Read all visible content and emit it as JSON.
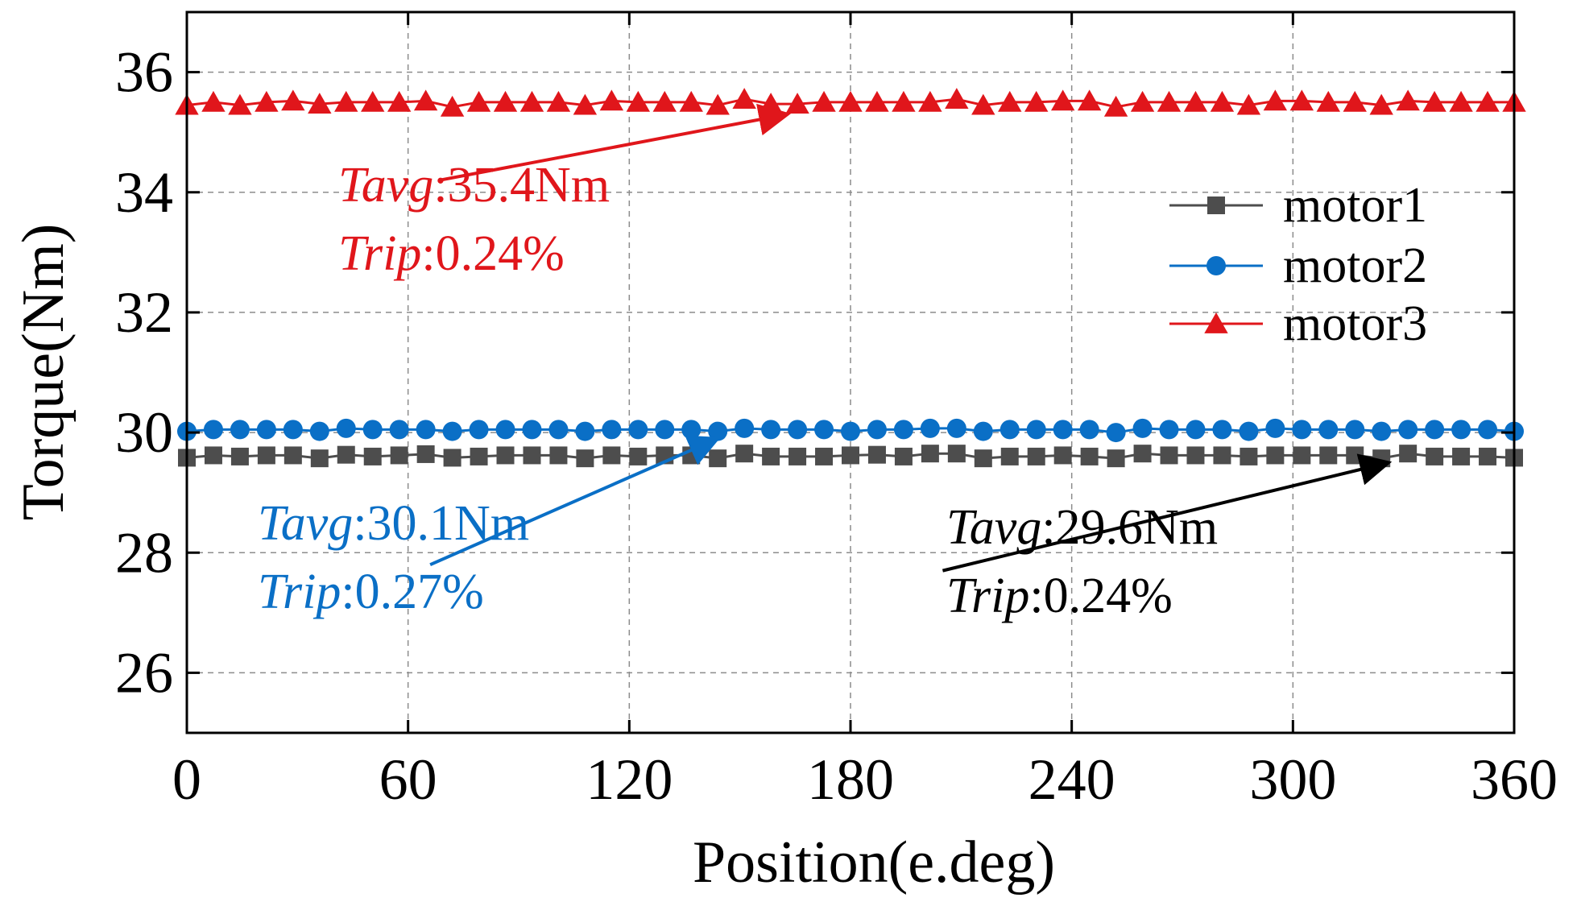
{
  "chart_data": {
    "type": "line",
    "xlabel": "Position(e.deg)",
    "ylabel": "Torque(Nm)",
    "xlim": [
      0,
      360
    ],
    "ylim": [
      25,
      37
    ],
    "xticks": [
      0,
      60,
      120,
      180,
      240,
      300,
      360
    ],
    "xtick_labels": [
      "0",
      "60",
      "120",
      "180",
      "240",
      "300",
      "360"
    ],
    "yticks": [
      26,
      28,
      30,
      32,
      34,
      36
    ],
    "ytick_labels": [
      "26",
      "28",
      "30",
      "32",
      "34",
      "36"
    ],
    "grid": true,
    "legend_position": "top-right",
    "x": [
      0,
      7.2,
      14.4,
      21.6,
      28.8,
      36,
      43.2,
      50.4,
      57.6,
      64.8,
      72,
      79.2,
      86.4,
      93.6,
      100.8,
      108,
      115.2,
      122.4,
      129.6,
      136.8,
      144,
      151.2,
      158.4,
      165.6,
      172.8,
      180,
      187.2,
      194.4,
      201.6,
      208.8,
      216,
      223.2,
      230.4,
      237.6,
      244.8,
      252,
      259.2,
      266.4,
      273.6,
      280.8,
      288,
      295.2,
      302.4,
      309.6,
      316.8,
      324,
      331.2,
      338.4,
      345.6,
      352.8,
      360
    ],
    "series": [
      {
        "name": "motor1",
        "color": "#4d4d4d",
        "marker": "square",
        "values": [
          29.58,
          29.62,
          29.6,
          29.62,
          29.62,
          29.57,
          29.63,
          29.6,
          29.62,
          29.64,
          29.58,
          29.6,
          29.62,
          29.62,
          29.62,
          29.57,
          29.62,
          29.6,
          29.62,
          29.62,
          29.57,
          29.65,
          29.6,
          29.6,
          29.6,
          29.62,
          29.63,
          29.6,
          29.65,
          29.65,
          29.57,
          29.6,
          29.6,
          29.62,
          29.6,
          29.57,
          29.65,
          29.62,
          29.62,
          29.62,
          29.6,
          29.62,
          29.62,
          29.62,
          29.62,
          29.57,
          29.65,
          29.6,
          29.6,
          29.6,
          29.58
        ]
      },
      {
        "name": "motor2",
        "color": "#0a6fc6",
        "marker": "circle",
        "values": [
          30.02,
          30.05,
          30.05,
          30.05,
          30.05,
          30.02,
          30.07,
          30.05,
          30.05,
          30.05,
          30.02,
          30.05,
          30.05,
          30.05,
          30.05,
          30.02,
          30.05,
          30.05,
          30.05,
          30.05,
          30.02,
          30.07,
          30.05,
          30.05,
          30.05,
          30.02,
          30.05,
          30.05,
          30.07,
          30.07,
          30.02,
          30.05,
          30.05,
          30.05,
          30.05,
          30.0,
          30.07,
          30.05,
          30.05,
          30.05,
          30.02,
          30.07,
          30.05,
          30.05,
          30.05,
          30.02,
          30.05,
          30.05,
          30.05,
          30.05,
          30.02
        ]
      },
      {
        "name": "motor3",
        "color": "#e0161b",
        "marker": "triangle",
        "values": [
          35.45,
          35.5,
          35.45,
          35.5,
          35.52,
          35.47,
          35.5,
          35.5,
          35.5,
          35.52,
          35.42,
          35.5,
          35.5,
          35.5,
          35.5,
          35.45,
          35.52,
          35.5,
          35.5,
          35.5,
          35.45,
          35.55,
          35.47,
          35.47,
          35.5,
          35.5,
          35.5,
          35.5,
          35.5,
          35.55,
          35.45,
          35.5,
          35.5,
          35.52,
          35.52,
          35.42,
          35.5,
          35.5,
          35.5,
          35.5,
          35.45,
          35.52,
          35.52,
          35.5,
          35.5,
          35.45,
          35.52,
          35.5,
          35.5,
          35.5,
          35.5
        ]
      }
    ],
    "annotations": [
      {
        "series": "motor3",
        "color": "#e0161b",
        "tavg_label": "Tavg",
        "tavg_value": ":35.4Nm",
        "trip_label": "Trip",
        "trip_value": ":0.24%",
        "arrow_from": [
          68.5,
          34.2
        ],
        "arrow_to": [
          163,
          35.3
        ]
      },
      {
        "series": "motor2",
        "color": "#0a6fc6",
        "tavg_label": "Tavg",
        "tavg_value": ":30.1Nm",
        "trip_label": "Trip",
        "trip_value": ":0.27%",
        "arrow_from": [
          66,
          27.8
        ],
        "arrow_to": [
          144,
          29.9
        ]
      },
      {
        "series": "motor1",
        "color": "#000000",
        "tavg_label": "Tavg",
        "tavg_value": ":29.6Nm",
        "trip_label": "Trip",
        "trip_value": ":0.24%",
        "arrow_from": [
          205,
          27.7
        ],
        "arrow_to": [
          326,
          29.5
        ]
      }
    ]
  }
}
